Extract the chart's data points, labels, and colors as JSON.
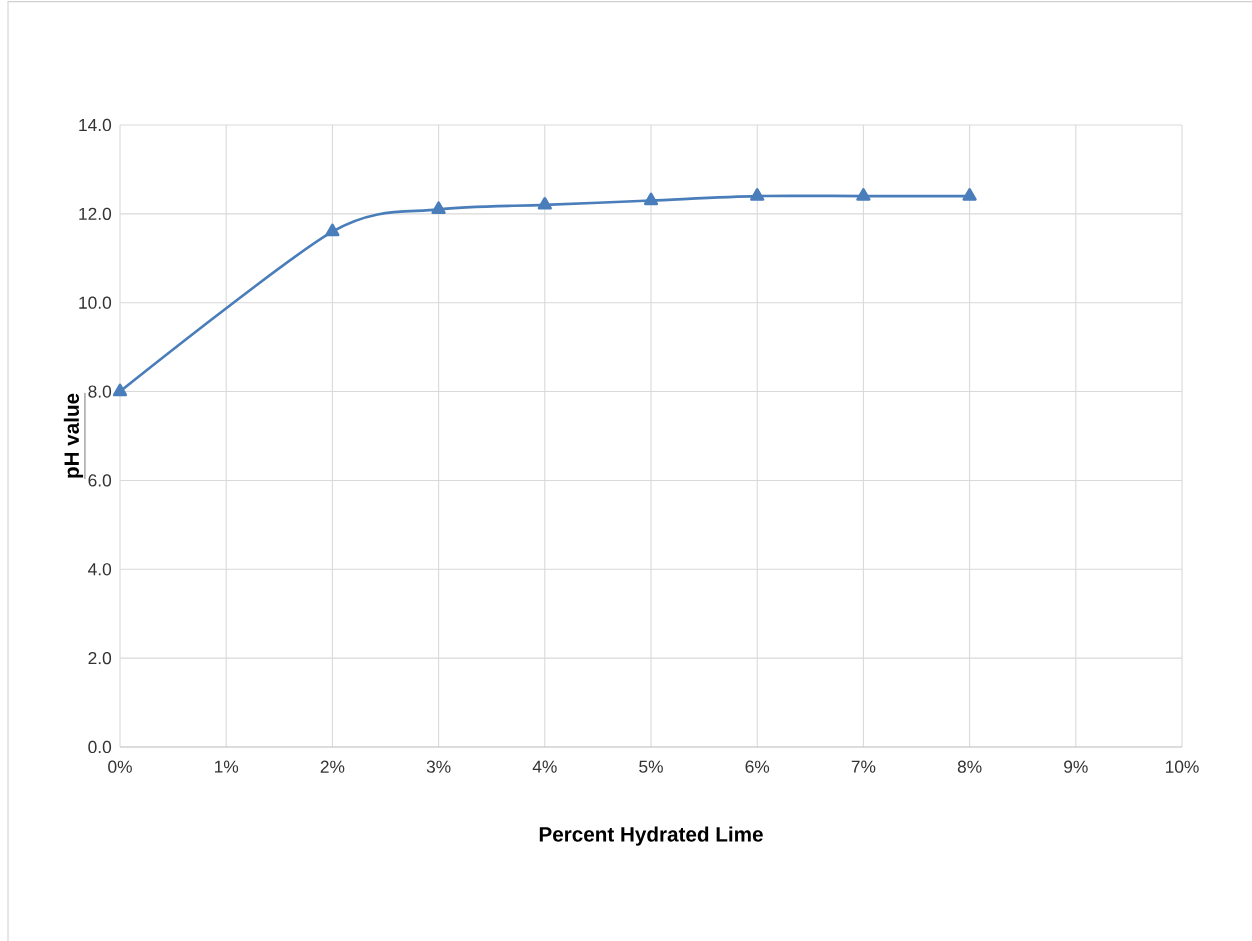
{
  "chart_data": {
    "type": "line",
    "xlabel": "Percent Hydrated Lime",
    "ylabel": "pH value",
    "x": [
      0,
      2,
      3,
      4,
      5,
      6,
      7,
      8
    ],
    "series": [
      {
        "color": "#4a7ebb",
        "values": [
          8.0,
          11.6,
          12.1,
          12.2,
          12.3,
          12.4,
          12.4,
          12.4
        ]
      }
    ],
    "xlim": [
      0,
      10
    ],
    "xticks": [
      {
        "value": 0,
        "label": "0%"
      },
      {
        "value": 1,
        "label": "1%"
      },
      {
        "value": 2,
        "label": "2%"
      },
      {
        "value": 3,
        "label": "3%"
      },
      {
        "value": 4,
        "label": "4%"
      },
      {
        "value": 5,
        "label": "5%"
      },
      {
        "value": 6,
        "label": "6%"
      },
      {
        "value": 7,
        "label": "7%"
      },
      {
        "value": 8,
        "label": "8%"
      },
      {
        "value": 9,
        "label": "9%"
      },
      {
        "value": 10,
        "label": "10%"
      }
    ],
    "ylim": [
      0,
      14
    ],
    "yticks": [
      {
        "value": 0,
        "label": "0.0"
      },
      {
        "value": 2,
        "label": "2.0"
      },
      {
        "value": 4,
        "label": "4.0"
      },
      {
        "value": 6,
        "label": "6.0"
      },
      {
        "value": 8,
        "label": "8.0"
      },
      {
        "value": 10,
        "label": "10.0"
      },
      {
        "value": 12,
        "label": "12.0"
      },
      {
        "value": 14,
        "label": "14.0"
      }
    ],
    "grid": true,
    "marker": "triangle",
    "line_style": "solid"
  }
}
